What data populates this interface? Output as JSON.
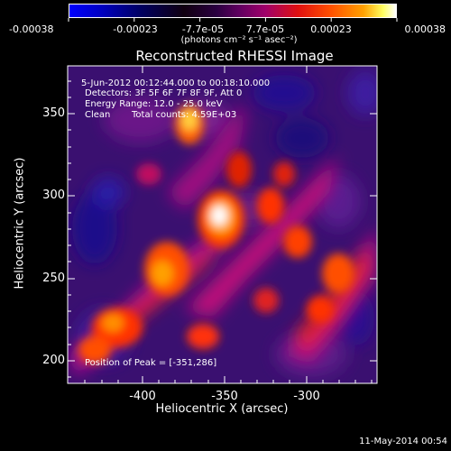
{
  "colorbar": {
    "tick_labels": [
      "-0.00038",
      "-0.00023",
      "-7.7e-05",
      "7.7e-05",
      "0.00023",
      "0.00038"
    ],
    "units_label": "(photons cm⁻² s⁻¹ asec⁻²)",
    "range": [
      -0.00038,
      0.00038
    ]
  },
  "plot": {
    "title": "Reconstructed RHESSI Image",
    "xlabel": "Heliocentric X (arcsec)",
    "ylabel": "Heliocentric Y (arcsec)",
    "x_ticks": [
      "-400",
      "-350",
      "-300"
    ],
    "y_ticks": [
      "350",
      "300",
      "250",
      "200"
    ],
    "xlim": [
      -445,
      -265
    ],
    "ylim": [
      187,
      375
    ]
  },
  "annotations": {
    "time_range": "5-Jun-2012 00:12:44.000 to 00:18:10.000",
    "detectors": "Detectors: 3F 5F 6F 7F 8F 9F, Att 0",
    "energy_range": "Energy Range: 12.0 - 25.0 keV",
    "algorithm": "Clean",
    "total_counts": "Total counts: 4.59E+03",
    "peak_position": "Position of Peak = [-351,286]"
  },
  "footer": {
    "timestamp": "11-May-2014 00:54"
  },
  "image_data": {
    "colormap": [
      "#0000ff",
      "#000080",
      "#2a0066",
      "#4a1a99",
      "#7a1aa0",
      "#b0108a",
      "#e0202a",
      "#ff6000",
      "#ffb000",
      "#ffffff"
    ],
    "peak": [
      -351,
      286
    ]
  }
}
